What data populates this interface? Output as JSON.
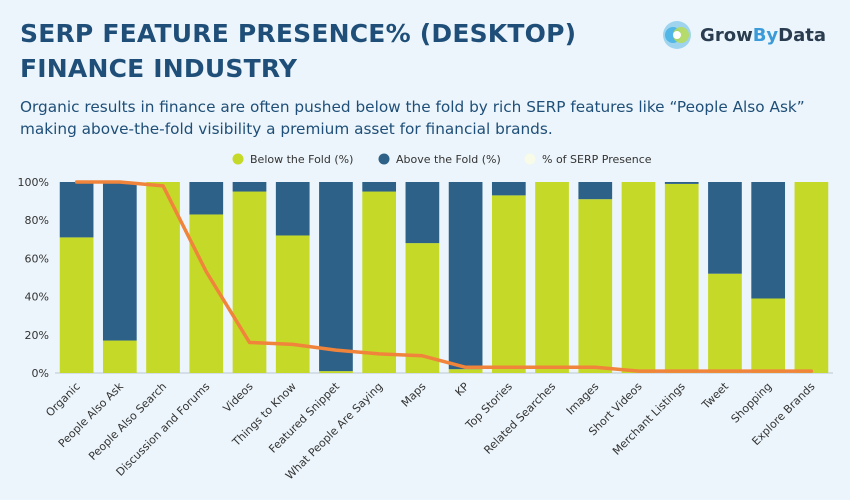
{
  "header": {
    "title_line1": "SERP FEATURE PRESENCE% (DESKTOP)",
    "title_line2": "FINANCE INDUSTRY",
    "subtitle": "Organic results in finance are often pushed below the fold by rich SERP features like “People Also Ask” making above-the-fold visibility a premium asset for financial brands."
  },
  "logo": {
    "part1": "Grow",
    "part2": "By",
    "part3": "Data",
    "icon": "growbydata-logo-icon"
  },
  "colors": {
    "below": "#c5d929",
    "above": "#2e6188",
    "line": "#f1843b",
    "text": "#1f4f78"
  },
  "chart_data": {
    "type": "bar",
    "stacked": true,
    "categories": [
      "Organic",
      "People Also Ask",
      "People Also Search",
      "Discussion and Forums",
      "Videos",
      "Things to Know",
      "Featured Snippet",
      "What People Are Saying",
      "Maps",
      "KP",
      "Top Stories",
      "Related Searches",
      "Images",
      "Short Videos",
      "Merchant Listings",
      "Tweet",
      "Shopping",
      "Explore Brands"
    ],
    "series": [
      {
        "name": "Below the Fold (%)",
        "values": [
          71,
          17,
          100,
          83,
          95,
          72,
          1,
          95,
          68,
          2,
          93,
          100,
          91,
          100,
          99,
          52,
          39,
          100
        ]
      },
      {
        "name": "Above the Fold (%)",
        "values": [
          29,
          83,
          0,
          17,
          5,
          28,
          99,
          5,
          32,
          98,
          7,
          0,
          9,
          0,
          1,
          48,
          61,
          0
        ]
      },
      {
        "name": "% of SERP Presence",
        "type": "line",
        "values": [
          100,
          100,
          98,
          53,
          16,
          15,
          12,
          10,
          9,
          3,
          3,
          3,
          3,
          1,
          1,
          1,
          1,
          1
        ]
      }
    ],
    "ylim": [
      0,
      100
    ],
    "yticks": [
      "0%",
      "20%",
      "40%",
      "60%",
      "80%",
      "100%"
    ],
    "legend_position": "top-center"
  }
}
